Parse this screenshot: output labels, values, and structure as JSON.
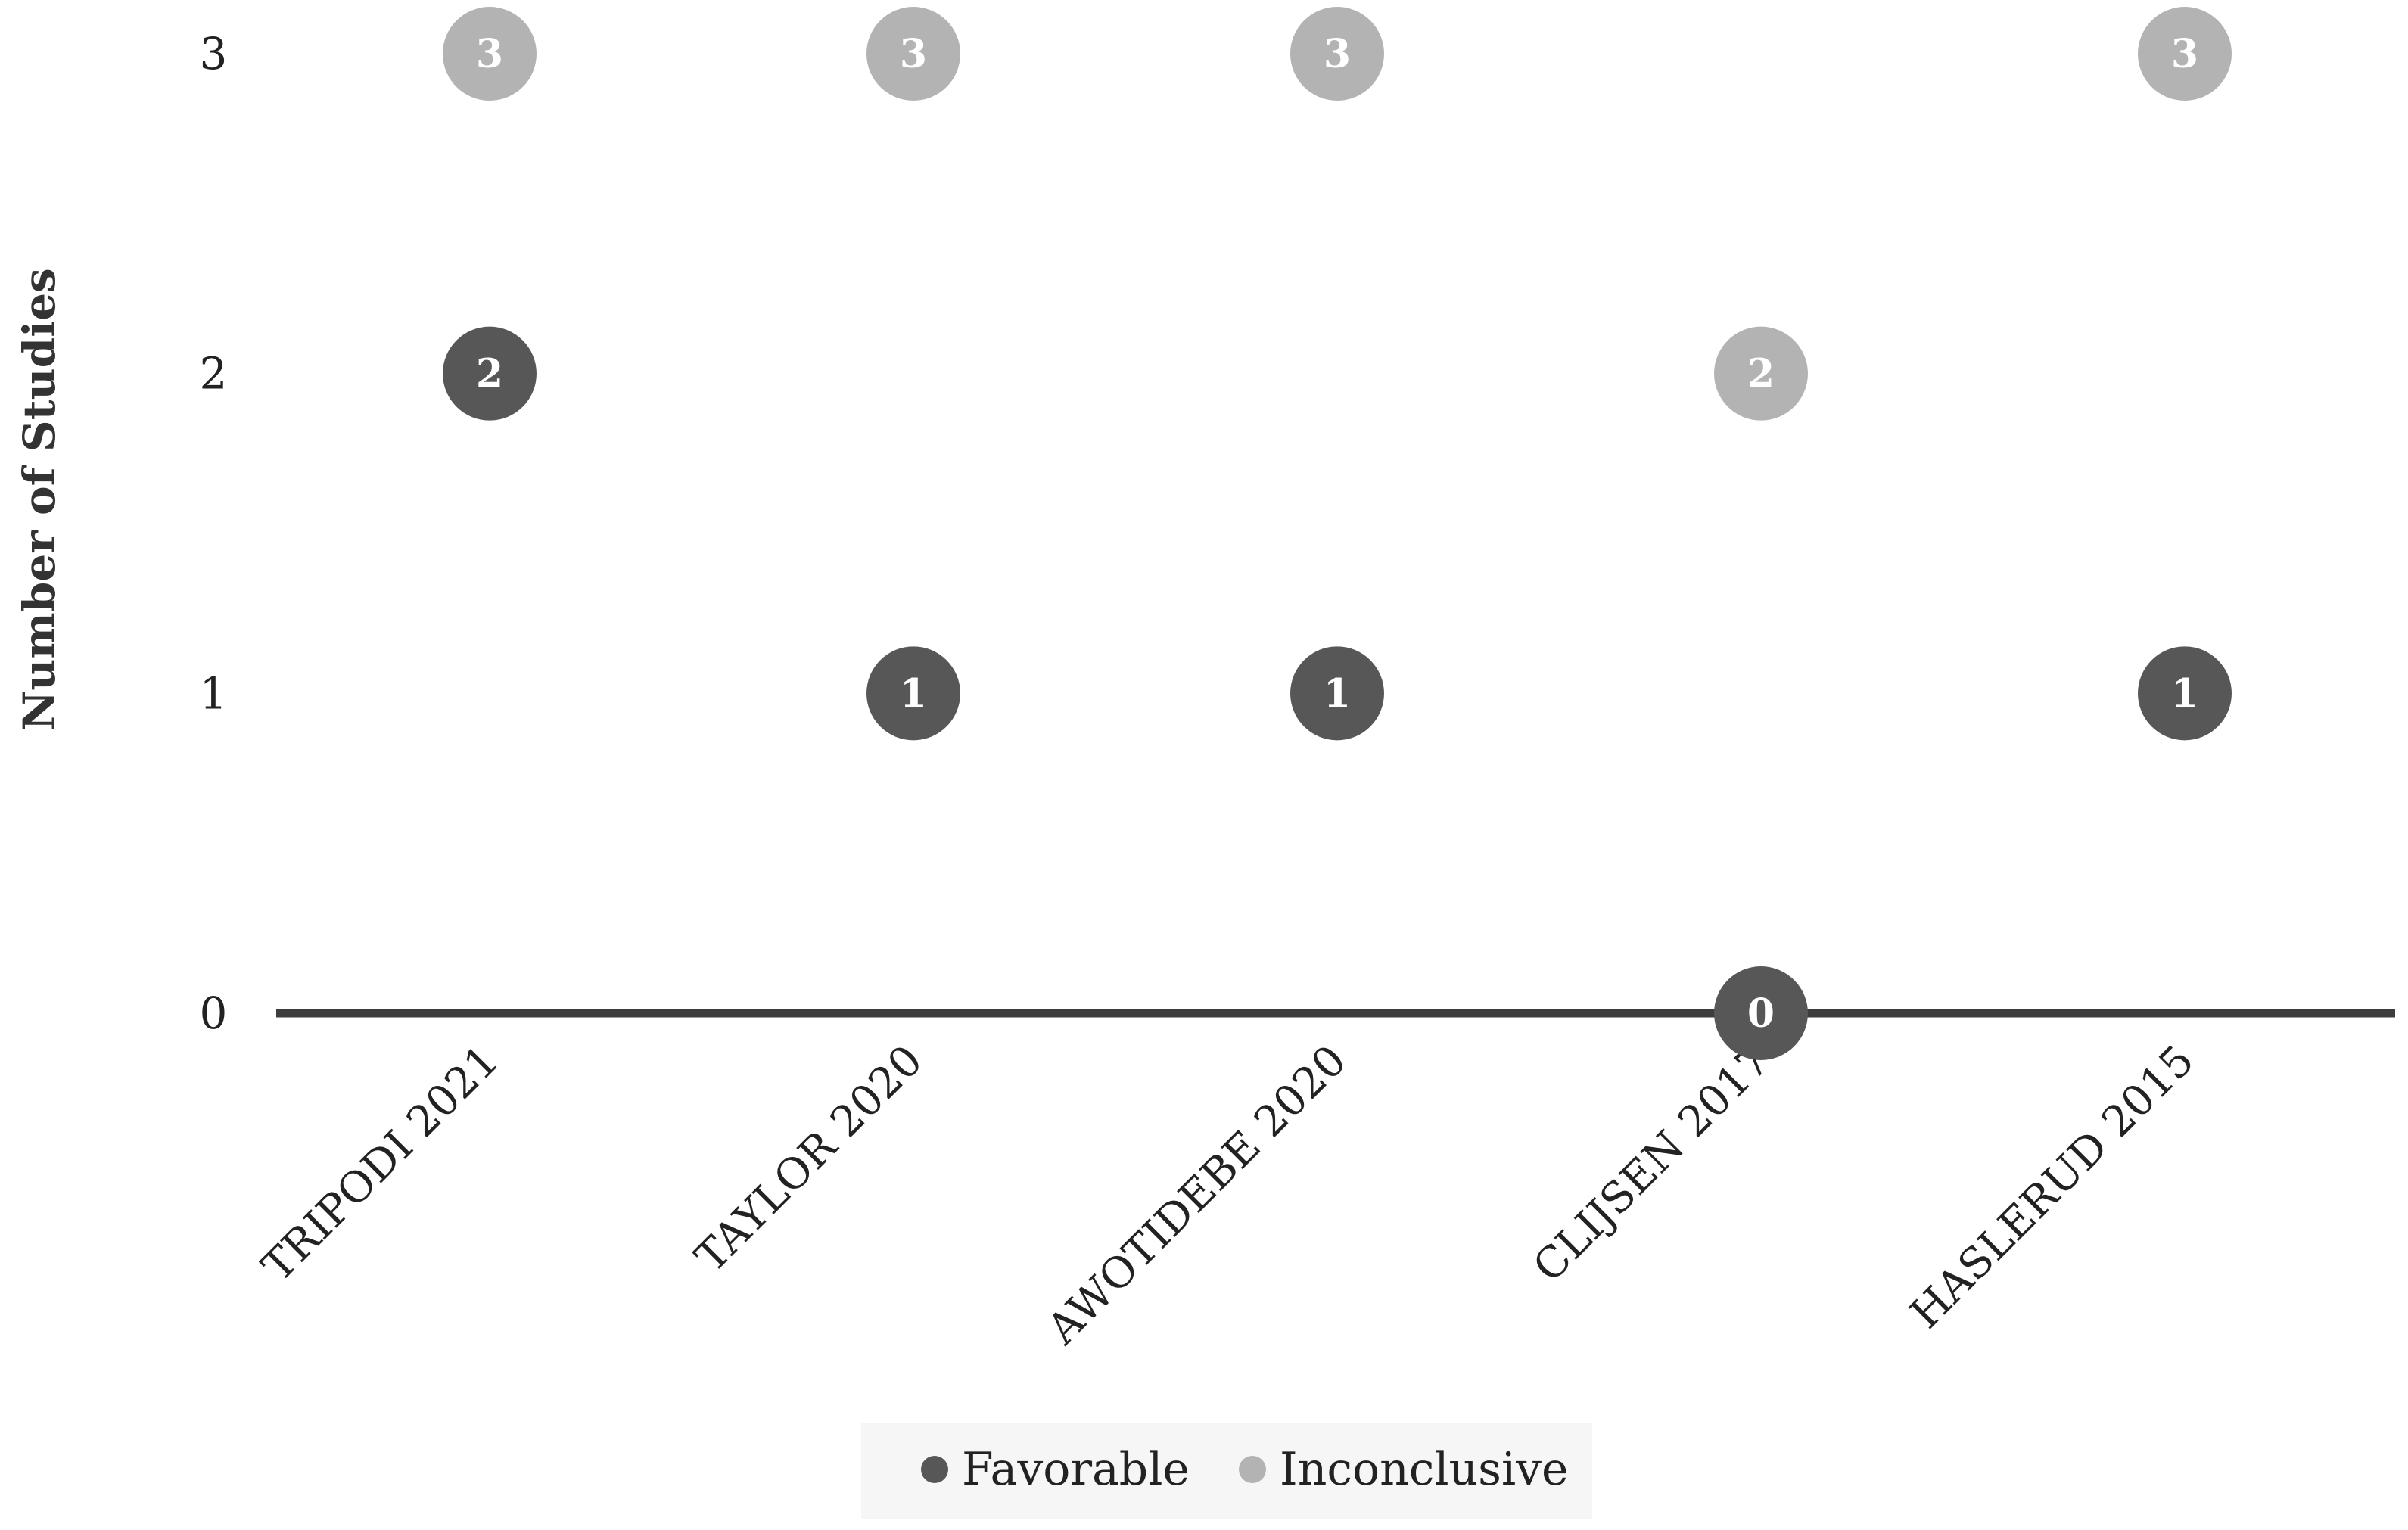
{
  "chart_data": {
    "type": "scatter",
    "ylabel": "Number of Studies",
    "xlabel": "",
    "categories": [
      "TRIPODI 2021",
      "TAYLOR 2020",
      "AWOTIDEBE 2020",
      "CLIJSEN 2017",
      "HASLERUD 2015"
    ],
    "y_ticks": [
      "0",
      "1",
      "2",
      "3"
    ],
    "ylim": [
      0,
      3
    ],
    "series": [
      {
        "name": "Favorable",
        "color": "#575757",
        "values": [
          2,
          1,
          1,
          0,
          1
        ]
      },
      {
        "name": "Inconclusive",
        "color": "#b3b3b3",
        "values": [
          3,
          3,
          3,
          2,
          3
        ]
      }
    ],
    "point_labels": true,
    "legend": "bottom-center",
    "grid": false
  }
}
